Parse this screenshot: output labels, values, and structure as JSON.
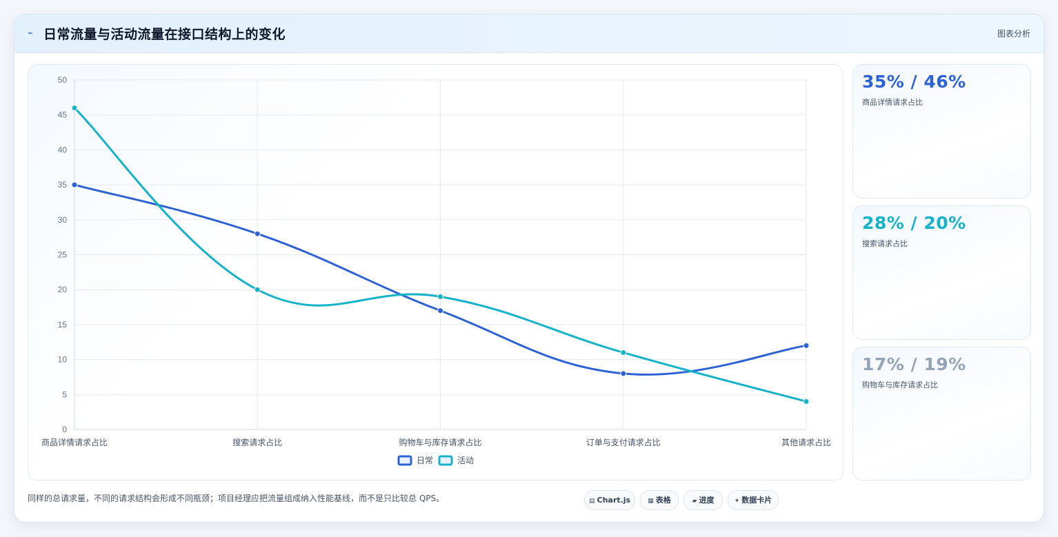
{
  "header": {
    "icon": "sparkline-icon",
    "title": "日常流量与活动流量在接口结构上的变化",
    "tag": "图表分析"
  },
  "chart_data": {
    "type": "line",
    "categories": [
      "商品详情请求占比",
      "搜索请求占比",
      "购物车与库存请求占比",
      "订单与支付请求占比",
      "其他请求占比"
    ],
    "series": [
      {
        "name": "日常",
        "values": [
          35,
          28,
          17,
          8,
          12
        ],
        "color": "#2c62d6"
      },
      {
        "name": "活动",
        "values": [
          46,
          20,
          19,
          11,
          4
        ],
        "color": "#14b3c9"
      }
    ],
    "ylim": [
      0,
      50
    ],
    "yticks": [
      0,
      5,
      10,
      15,
      20,
      25,
      30,
      35,
      40,
      45,
      50
    ],
    "grid": true,
    "legend": "bottom",
    "curve": "smooth"
  },
  "stats": [
    {
      "value": "35% / 46%",
      "label": "商品详情请求占比",
      "color": "#2c62d6"
    },
    {
      "value": "28% / 20%",
      "label": "搜索请求占比",
      "color": "#14b3c9"
    },
    {
      "value": "17% / 19%",
      "label": "购物车与库存请求占比",
      "color": "#94a3b8"
    }
  ],
  "footnote": "同样的总请求量，不同的请求结构会形成不同瓶颈；项目经理应把流量组成纳入性能基线，而不是只比较总 QPS。",
  "chips": [
    {
      "icon": "▤",
      "label": "Chart.js"
    },
    {
      "icon": "▦",
      "label": "表格"
    },
    {
      "icon": "▰",
      "label": "进度"
    },
    {
      "icon": "✦",
      "label": "数据卡片"
    }
  ]
}
